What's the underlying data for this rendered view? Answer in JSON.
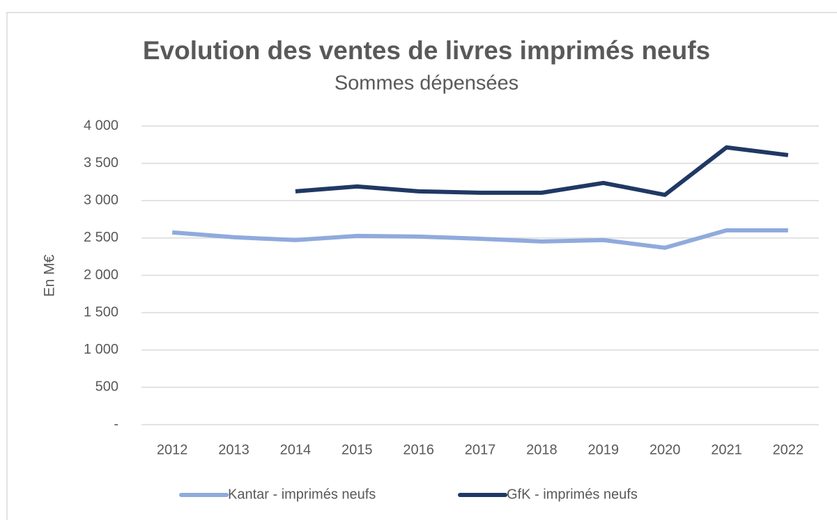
{
  "chart_data": {
    "type": "line",
    "title": "Evolution des ventes de livres imprimés neufs",
    "subtitle": "Sommes dépensées",
    "y_label": "En M€",
    "categories": [
      "2012",
      "2013",
      "2014",
      "2015",
      "2016",
      "2017",
      "2018",
      "2019",
      "2020",
      "2021",
      "2022"
    ],
    "series": [
      {
        "name": "Kantar - imprimés neufs",
        "color": "#8faadc",
        "values": [
          2575,
          2510,
          2472,
          2528,
          2519,
          2490,
          2453,
          2472,
          2369,
          2603,
          2603
        ]
      },
      {
        "name": "GfK - imprimés neufs",
        "color": "#203864",
        "values": [
          null,
          null,
          3125,
          3190,
          3125,
          3106,
          3106,
          3237,
          3078,
          3713,
          3610
        ]
      }
    ],
    "ylim": [
      0,
      4000
    ],
    "yticks": [
      {
        "value": 0,
        "label": "-"
      },
      500,
      {
        "value": 1000,
        "label": "1 000"
      },
      {
        "value": 1500,
        "label": "1 500"
      },
      {
        "value": 2000,
        "label": "2 000"
      },
      {
        "value": 2500,
        "label": "2 500"
      },
      {
        "value": 3000,
        "label": "3 000"
      },
      {
        "value": 3500,
        "label": "3 500"
      },
      {
        "value": 4000,
        "label": "4 000"
      }
    ],
    "grid": true,
    "legend": "bottom"
  }
}
